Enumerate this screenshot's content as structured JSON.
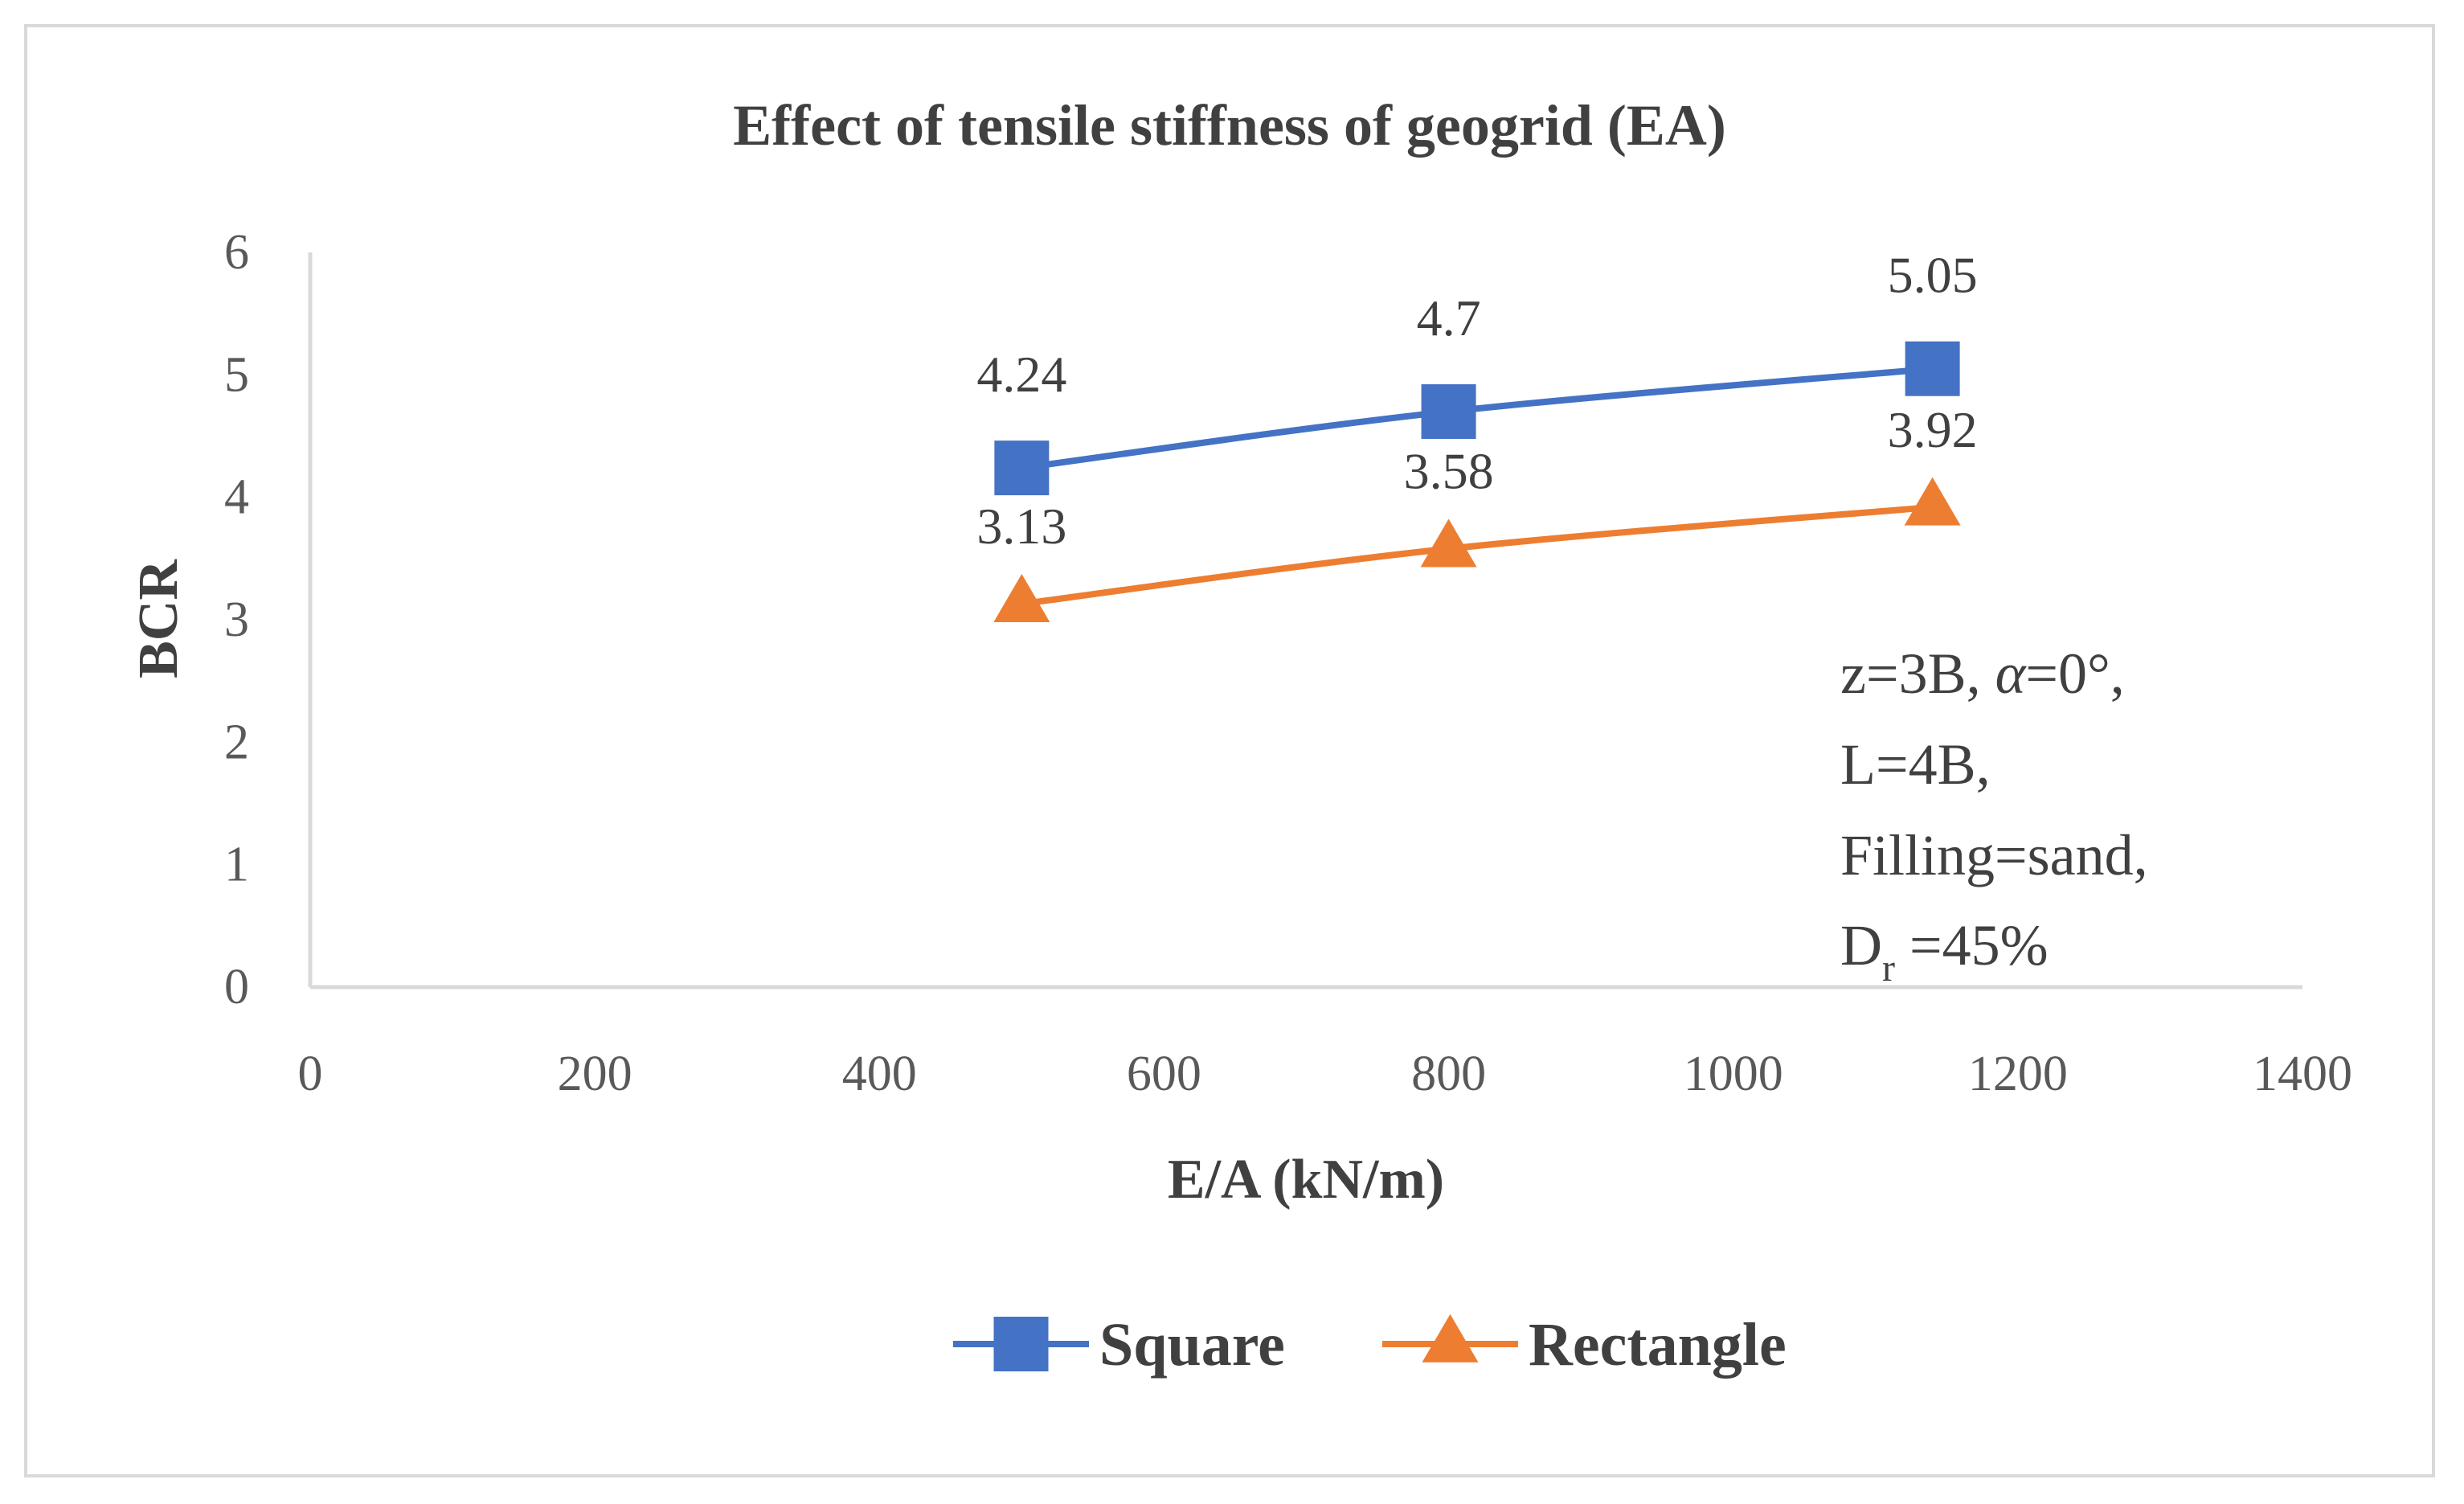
{
  "chart_data": {
    "type": "line",
    "title": "Effect of tensile stiffness of geogrid (EA)",
    "xlabel": "E/A (kN/m)",
    "ylabel": "BCR",
    "xlim": [
      0,
      1400
    ],
    "ylim": [
      0,
      6
    ],
    "x_ticks": [
      "0",
      "200",
      "400",
      "600",
      "800",
      "1000",
      "1200",
      "1400"
    ],
    "y_ticks": [
      "0",
      "1",
      "2",
      "3",
      "4",
      "5",
      "6"
    ],
    "grid": false,
    "legend_position": "bottom",
    "series": [
      {
        "name": "Square",
        "color": "#4472c4",
        "marker": "square",
        "x": [
          500,
          800,
          1140
        ],
        "values": [
          4.24,
          4.7,
          5.05
        ],
        "labels": [
          "4.24",
          "4.7",
          "5.05"
        ]
      },
      {
        "name": "Rectangle",
        "color": "#ed7d31",
        "marker": "triangle",
        "x": [
          500,
          800,
          1140
        ],
        "values": [
          3.13,
          3.58,
          3.92
        ],
        "labels": [
          "3.13",
          "3.58",
          "3.92"
        ]
      }
    ],
    "annotation": {
      "line1": "z=3B, ",
      "alpha_symbol": "α",
      "line1_rest": "=0°,",
      "line2": "L=4B,",
      "line3": "Filling=sand,",
      "line4_main": "D",
      "line4_sub": "r",
      "line4_rest": " =45%"
    }
  }
}
